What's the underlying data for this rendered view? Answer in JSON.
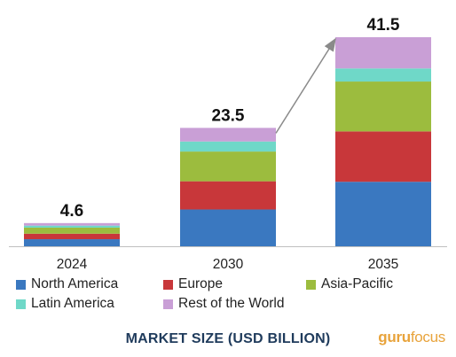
{
  "chart_data": {
    "type": "bar",
    "stacked": true,
    "title": "MARKET SIZE (USD BILLION)",
    "categories": [
      "2024",
      "2030",
      "2035"
    ],
    "totals": [
      "4.6",
      "23.5",
      "41.5"
    ],
    "total_values": [
      4.6,
      23.5,
      41.5
    ],
    "series": [
      {
        "name": "North America",
        "color": "#3a78c0",
        "values": [
          1.4,
          7.3,
          12.8
        ]
      },
      {
        "name": "Europe",
        "color": "#c8373a",
        "values": [
          1.1,
          5.6,
          10.0
        ]
      },
      {
        "name": "Asia-Pacific",
        "color": "#9cbc3e",
        "values": [
          1.2,
          5.9,
          9.9
        ]
      },
      {
        "name": "Latin America",
        "color": "#6fd8c8",
        "values": [
          0.4,
          2.0,
          2.6
        ]
      },
      {
        "name": "Rest of the World",
        "color": "#c99fd6",
        "values": [
          0.5,
          2.7,
          6.2
        ]
      }
    ],
    "ylim": [
      0,
      41.5
    ],
    "grid": false,
    "legend_position": "bottom",
    "annotation": "arrow-from-2030-to-2035"
  },
  "watermark": {
    "part1": "guru",
    "part2": "focus"
  }
}
